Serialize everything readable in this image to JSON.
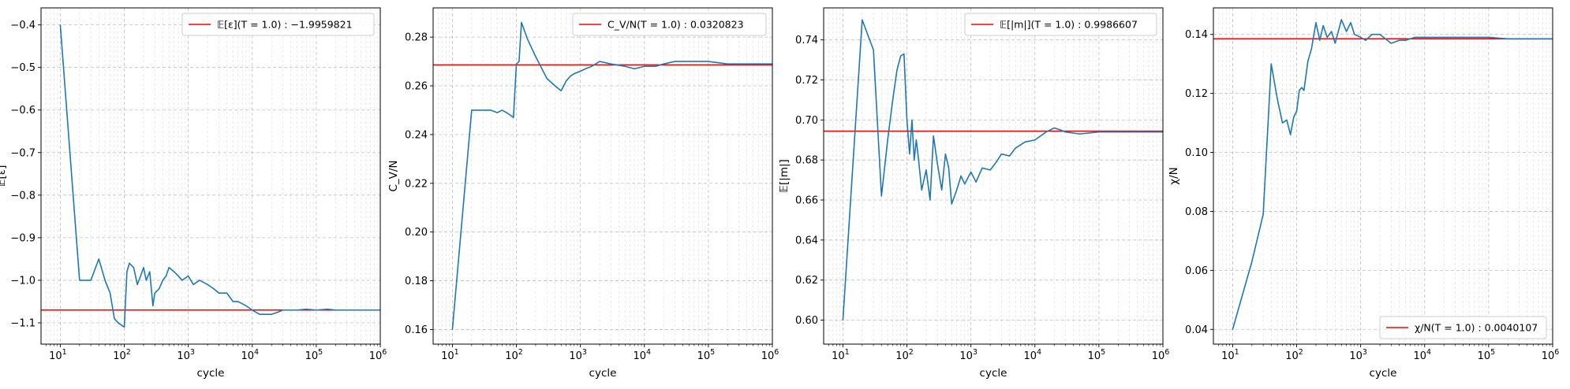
{
  "chart_data": [
    {
      "type": "line",
      "xlabel": "cycle",
      "ylabel": "𝔼[ε]",
      "xscale": "log",
      "xlim": [
        5,
        1000000
      ],
      "ylim": [
        -1.15,
        -0.36
      ],
      "xticks": [
        10,
        100,
        1000,
        10000,
        100000,
        1000000
      ],
      "xtick_exponents": [
        "1",
        "2",
        "3",
        "4",
        "5",
        "6"
      ],
      "yticks": [
        -1.1,
        -1.0,
        -0.9,
        -0.8,
        -0.7,
        -0.6,
        -0.5,
        -0.4
      ],
      "ytick_labels": [
        "−1.1",
        "−1.0",
        "−0.9",
        "−0.8",
        "−0.7",
        "−0.6",
        "−0.5",
        "−0.4"
      ],
      "grid": true,
      "legend_loc": "upper right",
      "hline": {
        "y": -1.07,
        "color": "#ff0000",
        "label": "𝔼[ε](T = 1.0) : −1.9959821"
      },
      "series": [
        {
          "color": "#1f77b4",
          "x": [
            10,
            20,
            30,
            40,
            50,
            60,
            70,
            80,
            100,
            110,
            120,
            140,
            160,
            180,
            200,
            220,
            250,
            280,
            300,
            350,
            400,
            450,
            500,
            600,
            700,
            800,
            1000,
            1200,
            1500,
            2000,
            2500,
            3000,
            4000,
            5000,
            6000,
            8000,
            10000,
            13000,
            16000,
            20000,
            25000,
            30000,
            40000,
            50000,
            70000,
            100000,
            150000,
            200000,
            300000,
            500000,
            700000,
            1000000
          ],
          "y": [
            -0.4,
            -1.0,
            -1.0,
            -0.95,
            -1.0,
            -1.03,
            -1.09,
            -1.1,
            -1.11,
            -0.98,
            -0.96,
            -0.97,
            -1.01,
            -0.99,
            -0.97,
            -1.0,
            -0.98,
            -1.06,
            -1.03,
            -1.02,
            -1.0,
            -0.99,
            -0.97,
            -0.98,
            -0.99,
            -1.0,
            -0.99,
            -1.01,
            -1.0,
            -1.01,
            -1.02,
            -1.03,
            -1.03,
            -1.05,
            -1.05,
            -1.06,
            -1.07,
            -1.08,
            -1.08,
            -1.08,
            -1.075,
            -1.07,
            -1.07,
            -1.07,
            -1.068,
            -1.07,
            -1.068,
            -1.07,
            -1.07,
            -1.07,
            -1.07,
            -1.07
          ]
        }
      ]
    },
    {
      "type": "line",
      "xlabel": "cycle",
      "ylabel": "C_V/N",
      "xscale": "log",
      "xlim": [
        5,
        1000000
      ],
      "ylim": [
        0.154,
        0.292
      ],
      "xticks": [
        10,
        100,
        1000,
        10000,
        100000,
        1000000
      ],
      "xtick_exponents": [
        "1",
        "2",
        "3",
        "4",
        "5",
        "6"
      ],
      "yticks": [
        0.16,
        0.18,
        0.2,
        0.22,
        0.24,
        0.26,
        0.28
      ],
      "ytick_labels": [
        "0.16",
        "0.18",
        "0.20",
        "0.22",
        "0.24",
        "0.26",
        "0.28"
      ],
      "grid": true,
      "legend_loc": "upper right",
      "hline": {
        "y": 0.2686,
        "color": "#ff0000",
        "label": "C_V/N(T = 1.0) : 0.0320823"
      },
      "series": [
        {
          "color": "#1f77b4",
          "x": [
            10,
            20,
            30,
            40,
            50,
            60,
            70,
            80,
            90,
            100,
            110,
            120,
            150,
            200,
            300,
            400,
            500,
            600,
            700,
            800,
            1000,
            1200,
            1500,
            2000,
            3000,
            5000,
            7000,
            10000,
            15000,
            20000,
            30000,
            50000,
            100000,
            200000,
            500000,
            1000000
          ],
          "y": [
            0.16,
            0.25,
            0.25,
            0.25,
            0.249,
            0.25,
            0.249,
            0.248,
            0.247,
            0.269,
            0.27,
            0.286,
            0.279,
            0.272,
            0.263,
            0.26,
            0.258,
            0.262,
            0.264,
            0.265,
            0.266,
            0.267,
            0.268,
            0.27,
            0.269,
            0.268,
            0.267,
            0.268,
            0.268,
            0.269,
            0.27,
            0.27,
            0.27,
            0.269,
            0.269,
            0.269
          ]
        }
      ]
    },
    {
      "type": "line",
      "xlabel": "cycle",
      "ylabel": "𝔼[|m|]",
      "xscale": "log",
      "xlim": [
        5,
        1000000
      ],
      "ylim": [
        0.588,
        0.756
      ],
      "xticks": [
        10,
        100,
        1000,
        10000,
        100000,
        1000000
      ],
      "xtick_exponents": [
        "1",
        "2",
        "3",
        "4",
        "5",
        "6"
      ],
      "yticks": [
        0.6,
        0.62,
        0.64,
        0.66,
        0.68,
        0.7,
        0.72,
        0.74
      ],
      "ytick_labels": [
        "0.60",
        "0.62",
        "0.64",
        "0.66",
        "0.68",
        "0.70",
        "0.72",
        "0.74"
      ],
      "grid": true,
      "legend_loc": "upper right",
      "hline": {
        "y": 0.6944,
        "color": "#ff0000",
        "label": "𝔼[|m|](T = 1.0) : 0.9986607"
      },
      "series": [
        {
          "color": "#1f77b4",
          "x": [
            10,
            20,
            30,
            40,
            50,
            60,
            70,
            80,
            90,
            100,
            110,
            120,
            130,
            140,
            150,
            170,
            200,
            230,
            260,
            300,
            350,
            400,
            450,
            500,
            600,
            700,
            800,
            1000,
            1200,
            1500,
            2000,
            2500,
            3000,
            4000,
            5000,
            7000,
            10000,
            15000,
            20000,
            25000,
            30000,
            50000,
            100000,
            200000,
            500000,
            1000000
          ],
          "y": [
            0.6,
            0.75,
            0.735,
            0.662,
            0.69,
            0.71,
            0.725,
            0.732,
            0.733,
            0.7,
            0.683,
            0.7,
            0.68,
            0.69,
            0.682,
            0.665,
            0.675,
            0.66,
            0.692,
            0.678,
            0.665,
            0.683,
            0.676,
            0.658,
            0.665,
            0.672,
            0.668,
            0.674,
            0.669,
            0.676,
            0.675,
            0.679,
            0.683,
            0.682,
            0.686,
            0.689,
            0.69,
            0.694,
            0.696,
            0.695,
            0.694,
            0.693,
            0.694,
            0.694,
            0.694,
            0.694
          ]
        }
      ]
    },
    {
      "type": "line",
      "xlabel": "cycle",
      "ylabel": "χ/N",
      "xscale": "log",
      "xlim": [
        5,
        1000000
      ],
      "ylim": [
        0.035,
        0.149
      ],
      "xticks": [
        10,
        100,
        1000,
        10000,
        100000,
        1000000
      ],
      "xtick_exponents": [
        "1",
        "2",
        "3",
        "4",
        "5",
        "6"
      ],
      "yticks": [
        0.04,
        0.06,
        0.08,
        0.1,
        0.12,
        0.14
      ],
      "ytick_labels": [
        "0.04",
        "0.06",
        "0.08",
        "0.10",
        "0.12",
        "0.14"
      ],
      "grid": true,
      "legend_loc": "lower right",
      "hline": {
        "y": 0.1385,
        "color": "#ff0000",
        "label": "χ/N(T = 1.0) : 0.0040107"
      },
      "series": [
        {
          "color": "#1f77b4",
          "x": [
            10,
            20,
            30,
            40,
            50,
            60,
            70,
            80,
            90,
            100,
            110,
            120,
            130,
            150,
            170,
            200,
            230,
            260,
            300,
            350,
            400,
            500,
            600,
            700,
            800,
            1000,
            1200,
            1500,
            2000,
            3000,
            4000,
            5000,
            7000,
            10000,
            20000,
            50000,
            100000,
            200000,
            500000,
            1000000
          ],
          "y": [
            0.04,
            0.063,
            0.079,
            0.13,
            0.118,
            0.11,
            0.111,
            0.106,
            0.112,
            0.114,
            0.121,
            0.122,
            0.121,
            0.131,
            0.135,
            0.144,
            0.138,
            0.143,
            0.139,
            0.141,
            0.137,
            0.145,
            0.141,
            0.144,
            0.14,
            0.139,
            0.138,
            0.14,
            0.14,
            0.137,
            0.138,
            0.138,
            0.139,
            0.139,
            0.139,
            0.139,
            0.139,
            0.1385,
            0.1385,
            0.1385
          ]
        }
      ]
    }
  ]
}
